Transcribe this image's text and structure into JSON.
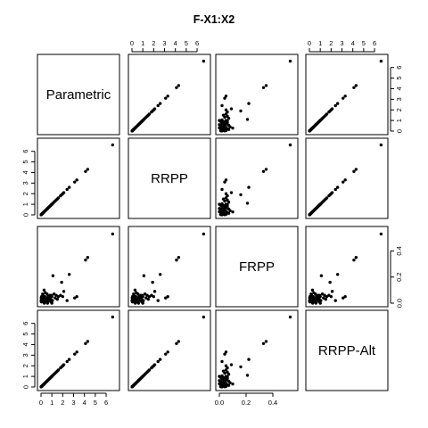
{
  "chart_data": {
    "type": "scatter",
    "title": "F-X1:X2",
    "variables": [
      "Parametric",
      "RRPP",
      "FRPP",
      "RRPP-Alt"
    ],
    "ranges": [
      [
        0,
        6.9
      ],
      [
        0,
        6.9
      ],
      [
        0,
        0.56
      ],
      [
        0,
        6.9
      ]
    ],
    "ticks": [
      [
        0,
        1,
        2,
        3,
        4,
        5,
        6
      ],
      [
        0,
        1,
        2,
        3,
        4,
        5,
        6
      ],
      [
        0.0,
        0.2,
        0.4
      ],
      [
        0,
        1,
        2,
        3,
        4,
        5,
        6
      ]
    ],
    "tick_labels": [
      [
        "0",
        "1",
        "2",
        "3",
        "4",
        "5",
        "6"
      ],
      [
        "0",
        "1",
        "2",
        "3",
        "4",
        "5",
        "6"
      ],
      [
        "0.0",
        "0.2",
        "0.4"
      ],
      [
        "0",
        "1",
        "2",
        "3",
        "4",
        "5",
        "6"
      ]
    ],
    "points_f": [
      [
        6.6,
        0.53
      ],
      [
        4.3,
        0.35
      ],
      [
        4.1,
        0.33
      ],
      [
        2.6,
        0.22
      ],
      [
        1.9,
        0.16
      ],
      [
        1.1,
        0.21
      ],
      [
        1.8,
        0.06
      ],
      [
        1.5,
        0.03
      ],
      [
        2.0,
        0.05
      ],
      [
        2.4,
        0.02
      ],
      [
        3.1,
        0.04
      ],
      [
        3.3,
        0.05
      ],
      [
        2.1,
        0.09
      ],
      [
        1.0,
        0.05
      ],
      [
        0.9,
        0.03
      ],
      [
        0.8,
        0.06
      ],
      [
        0.7,
        0.02
      ],
      [
        0.6,
        0.04
      ],
      [
        0.5,
        0.01
      ],
      [
        0.45,
        0.03
      ],
      [
        0.4,
        0.08
      ],
      [
        0.35,
        0.05
      ],
      [
        0.3,
        0.02
      ],
      [
        0.28,
        0.1
      ],
      [
        0.25,
        0.04
      ],
      [
        0.22,
        0.01
      ],
      [
        0.2,
        0.06
      ],
      [
        0.18,
        0.03
      ],
      [
        0.15,
        0.07
      ],
      [
        0.12,
        0.02
      ],
      [
        0.1,
        0.04
      ],
      [
        0.08,
        0.01
      ],
      [
        0.06,
        0.03
      ],
      [
        0.05,
        0.05
      ],
      [
        0.04,
        0.02
      ],
      [
        0.03,
        0.01
      ],
      [
        0.02,
        0.04
      ],
      [
        0.01,
        0.02
      ],
      [
        1.2,
        0.07
      ],
      [
        1.3,
        0.04
      ],
      [
        1.4,
        0.06
      ],
      [
        1.6,
        0.05
      ],
      [
        0.55,
        0.07
      ],
      [
        0.65,
        0.05
      ],
      [
        0.75,
        0.03
      ],
      [
        0.85,
        0.04
      ],
      [
        0.95,
        0.06
      ],
      [
        1.05,
        0.02
      ],
      [
        0.6,
        0.0
      ],
      [
        1.0,
        0.0
      ],
      [
        0.3,
        0.0
      ],
      [
        0.9,
        0.01
      ]
    ]
  }
}
